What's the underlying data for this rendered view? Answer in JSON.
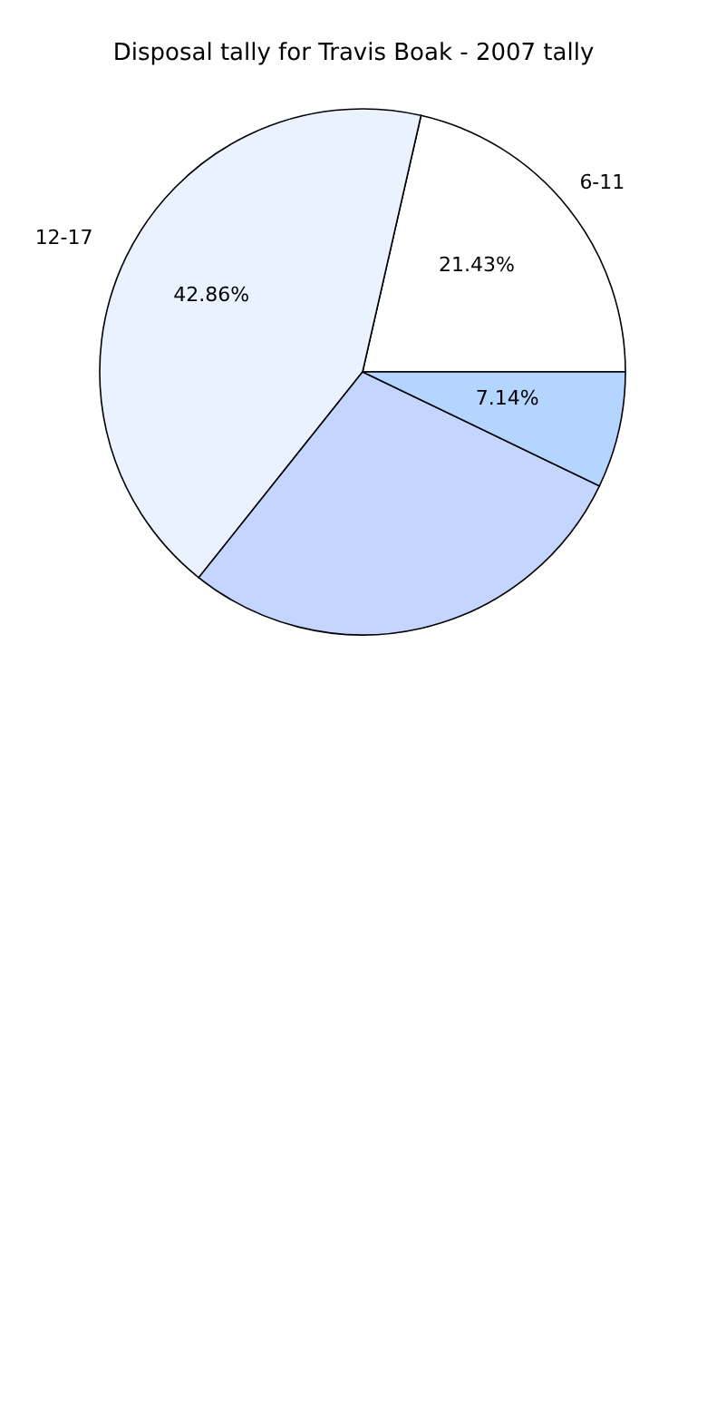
{
  "chart_data": {
    "type": "pie",
    "title": "Disposal tally for Travis Boak - 2007 tally",
    "categories": [
      "6-11",
      "12-17",
      null,
      null
    ],
    "values": [
      21.43,
      42.86,
      28.57,
      7.14
    ],
    "colors": [
      "#ffffff",
      "#eaf1ff",
      "#c4d6ff",
      "#b3d5ff"
    ],
    "value_labels": [
      "21.43%",
      "42.86%",
      null,
      "7.14%"
    ]
  }
}
